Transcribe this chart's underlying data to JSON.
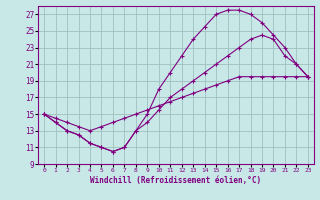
{
  "xlabel": "Windchill (Refroidissement éolien,°C)",
  "bg_color": "#c8e8e8",
  "grid_color": "#a0c0c0",
  "line_color": "#800080",
  "xlim": [
    -0.5,
    23.5
  ],
  "ylim": [
    9,
    28
  ],
  "xticks": [
    0,
    1,
    2,
    3,
    4,
    5,
    6,
    7,
    8,
    9,
    10,
    11,
    12,
    13,
    14,
    15,
    16,
    17,
    18,
    19,
    20,
    21,
    22,
    23
  ],
  "yticks": [
    9,
    11,
    13,
    15,
    17,
    19,
    21,
    23,
    25,
    27
  ],
  "line1_x": [
    0,
    1,
    2,
    3,
    4,
    5,
    6,
    7,
    8,
    9,
    10,
    11,
    12,
    13,
    14,
    15,
    16,
    17,
    18,
    19,
    20,
    21,
    22,
    23
  ],
  "line1_y": [
    15,
    14,
    13,
    12.5,
    11.5,
    11,
    10.5,
    11,
    13,
    15,
    18,
    20,
    22,
    24,
    25.5,
    27,
    27.5,
    27.5,
    27,
    26,
    24.5,
    23,
    21,
    19.5
  ],
  "line2_x": [
    0,
    1,
    2,
    3,
    4,
    5,
    6,
    7,
    8,
    9,
    10,
    11,
    12,
    13,
    14,
    15,
    16,
    17,
    18,
    19,
    20,
    21,
    22,
    23
  ],
  "line2_y": [
    15,
    14,
    13,
    12.5,
    11.5,
    11,
    10.5,
    11,
    13,
    14,
    15.5,
    17,
    18,
    19,
    20,
    21,
    22,
    23,
    24,
    24.5,
    24,
    22,
    21,
    19.5
  ],
  "line3_x": [
    0,
    1,
    2,
    3,
    4,
    5,
    6,
    7,
    8,
    9,
    10,
    11,
    12,
    13,
    14,
    15,
    16,
    17,
    18,
    19,
    20,
    21,
    22,
    23
  ],
  "line3_y": [
    15,
    14.5,
    14,
    13.5,
    13,
    13.5,
    14,
    14.5,
    15,
    15.5,
    16,
    16.5,
    17,
    17.5,
    18,
    18.5,
    19,
    19.5,
    19.5,
    19.5,
    19.5,
    19.5,
    19.5,
    19.5
  ]
}
